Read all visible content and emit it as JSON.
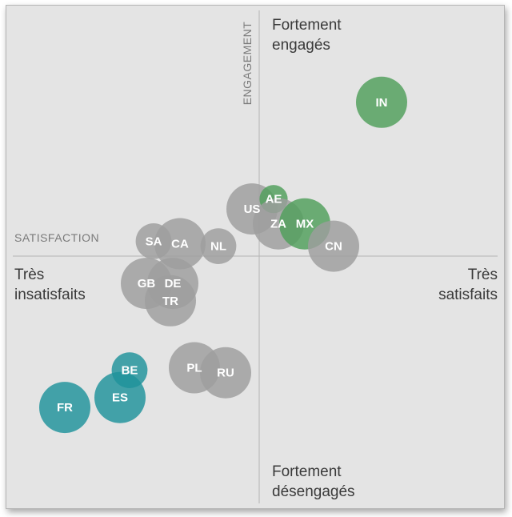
{
  "chart_data": {
    "type": "scatter",
    "title": "",
    "xlabel": "SATISFACTION",
    "ylabel": "ENGAGEMENT",
    "xlim": [
      -1,
      1
    ],
    "ylim": [
      -1,
      1
    ],
    "grid": false,
    "x_axis_ends": {
      "left": [
        "Très",
        "insatisfaits"
      ],
      "right": [
        "Très",
        "satisfaits"
      ]
    },
    "y_axis_ends": {
      "top": [
        "Fortement",
        "engagés"
      ],
      "bottom": [
        "Fortement",
        "désengagés"
      ]
    },
    "colors": {
      "neutral": "#9e9e9e",
      "engaged": "#4f9f5a",
      "disengaged": "#1f939b"
    },
    "points": [
      {
        "label": "IN",
        "x": 0.51,
        "y": 0.62,
        "size": 1.0,
        "group": "engaged"
      },
      {
        "label": "US",
        "x": -0.03,
        "y": 0.19,
        "size": 1.0,
        "group": "neutral"
      },
      {
        "label": "AE",
        "x": 0.06,
        "y": 0.23,
        "size": 0.55,
        "group": "engaged"
      },
      {
        "label": "ZA",
        "x": 0.08,
        "y": 0.13,
        "size": 1.0,
        "group": "neutral"
      },
      {
        "label": "MX",
        "x": 0.19,
        "y": 0.13,
        "size": 1.0,
        "group": "engaged"
      },
      {
        "label": "CN",
        "x": 0.31,
        "y": 0.04,
        "size": 1.0,
        "group": "neutral"
      },
      {
        "label": "SA",
        "x": -0.44,
        "y": 0.06,
        "size": 0.7,
        "group": "neutral"
      },
      {
        "label": "CA",
        "x": -0.33,
        "y": 0.05,
        "size": 1.0,
        "group": "neutral"
      },
      {
        "label": "NL",
        "x": -0.17,
        "y": 0.04,
        "size": 0.7,
        "group": "neutral"
      },
      {
        "label": "GB",
        "x": -0.47,
        "y": -0.11,
        "size": 1.0,
        "group": "neutral"
      },
      {
        "label": "DE",
        "x": -0.36,
        "y": -0.11,
        "size": 1.0,
        "group": "neutral"
      },
      {
        "label": "TR",
        "x": -0.37,
        "y": -0.18,
        "size": 1.0,
        "group": "neutral"
      },
      {
        "label": "PL",
        "x": -0.27,
        "y": -0.45,
        "size": 1.0,
        "group": "neutral"
      },
      {
        "label": "RU",
        "x": -0.14,
        "y": -0.47,
        "size": 1.0,
        "group": "neutral"
      },
      {
        "label": "BE",
        "x": -0.54,
        "y": -0.46,
        "size": 0.7,
        "group": "disengaged"
      },
      {
        "label": "ES",
        "x": -0.58,
        "y": -0.57,
        "size": 1.0,
        "group": "disengaged"
      },
      {
        "label": "FR",
        "x": -0.81,
        "y": -0.61,
        "size": 1.0,
        "group": "disengaged"
      }
    ]
  }
}
